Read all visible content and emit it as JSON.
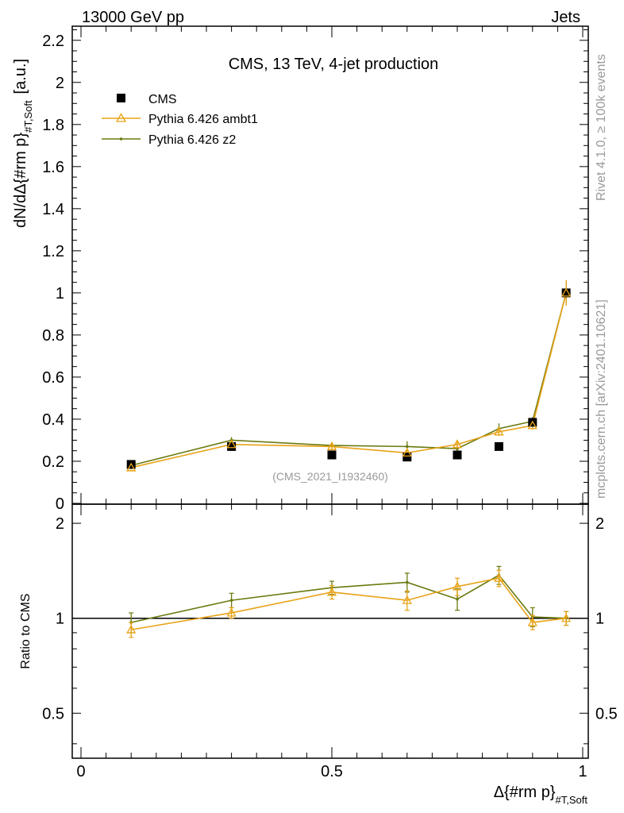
{
  "header": {
    "left": "13000 GeV pp",
    "right": "Jets"
  },
  "side": {
    "rivet": "Rivet 4.1.0, ≥ 100k events",
    "mcplots": "mcplots.cern.ch [arXiv:2401.10621]"
  },
  "colors": {
    "ambt1": "#e8a317",
    "z2": "#6b7a0f",
    "data": "#000000",
    "watermark": "#9a9a9a"
  },
  "chart_data": [
    {
      "type": "scatter",
      "panel": "main",
      "title": "CMS, 13 TeV, 4-jet production",
      "watermark": "(CMS_2021_I1932460)",
      "ylabel_main": "dN/dΔ{#rm p}",
      "ylabel_sub": "#T,Soft",
      "ylabel_unit": "[a.u.]",
      "xlim": [
        0,
        1
      ],
      "ylim": [
        0,
        2.25
      ],
      "yticks": [
        0,
        0.2,
        0.4,
        0.6,
        0.8,
        1,
        1.2,
        1.4,
        1.6,
        1.8,
        2,
        2.2
      ],
      "ytick_labels": [
        "0",
        "0.2",
        "0.4",
        "0.6",
        "0.8",
        "1",
        "1.2",
        "1.4",
        "1.6",
        "1.8",
        "2",
        "2.2"
      ],
      "legend": [
        "CMS",
        "Pythia 6.426 ambt1",
        "Pythia 6.426 z2"
      ],
      "x": [
        0.1,
        0.3,
        0.5,
        0.65,
        0.75,
        0.833,
        0.9,
        0.967
      ],
      "series": [
        {
          "name": "CMS",
          "values": [
            0.185,
            0.27,
            0.23,
            0.22,
            0.23,
            0.27,
            0.385,
            1.0
          ]
        },
        {
          "name": "Pythia 6.426 ambt1",
          "values": [
            0.17,
            0.28,
            0.27,
            0.24,
            0.28,
            0.34,
            0.37,
            1.0
          ],
          "errors": [
            0.01,
            0.015,
            0.015,
            0.02,
            0.02,
            0.02,
            0.02,
            0.06
          ]
        },
        {
          "name": "Pythia 6.426 z2",
          "values": [
            0.18,
            0.3,
            0.275,
            0.27,
            0.26,
            0.355,
            0.39,
            1.0
          ],
          "errors": [
            0.01,
            0.015,
            0.015,
            0.025,
            0.02,
            0.025,
            0.02,
            0.06
          ]
        }
      ]
    },
    {
      "type": "line",
      "panel": "ratio",
      "ylabel": "Ratio to CMS",
      "xlabel_main": "Δ{#rm p}",
      "xlabel_sub": "#T,Soft",
      "xlim": [
        0,
        1
      ],
      "ylim": [
        0.36,
        2.3
      ],
      "ytick_labels": [
        "0.5",
        "1",
        "2"
      ],
      "yticks": [
        0.5,
        1,
        2
      ],
      "xtick_labels": [
        "0",
        "0.5",
        "1"
      ],
      "xticks": [
        0,
        0.5,
        1
      ],
      "x": [
        0.1,
        0.3,
        0.5,
        0.65,
        0.75,
        0.833,
        0.9,
        0.967
      ],
      "series": [
        {
          "name": "Pythia 6.426 ambt1",
          "values": [
            0.92,
            1.04,
            1.21,
            1.14,
            1.26,
            1.34,
            0.97,
            1.0
          ],
          "errors": [
            0.05,
            0.04,
            0.06,
            0.08,
            0.08,
            0.08,
            0.05,
            0.05
          ]
        },
        {
          "name": "Pythia 6.426 z2",
          "values": [
            0.97,
            1.14,
            1.25,
            1.3,
            1.15,
            1.37,
            1.01,
            1.0
          ],
          "errors": [
            0.07,
            0.06,
            0.06,
            0.09,
            0.09,
            0.09,
            0.07,
            0.05
          ]
        }
      ]
    }
  ]
}
